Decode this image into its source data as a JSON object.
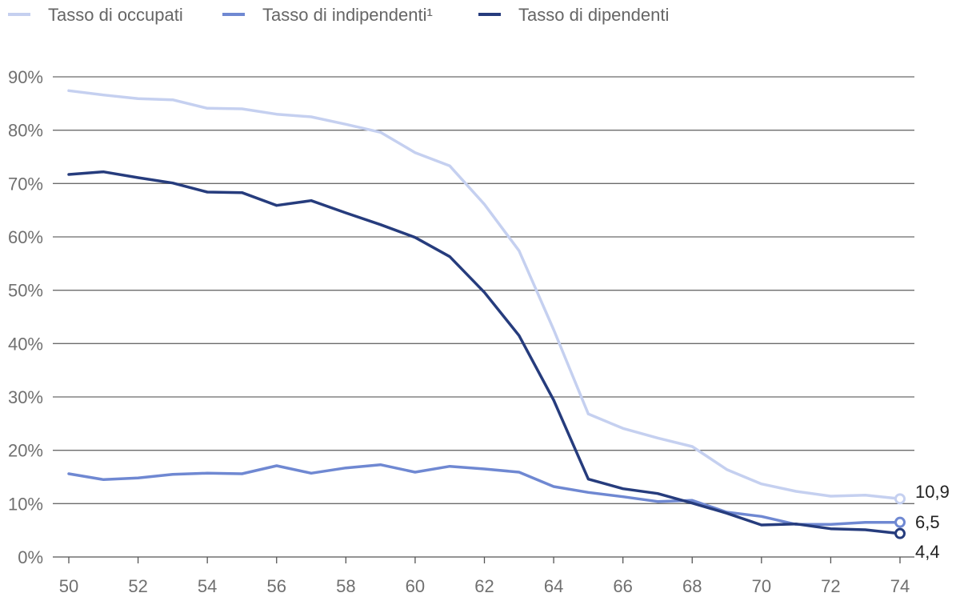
{
  "chart_data": {
    "type": "line",
    "title": "",
    "xlabel": "",
    "ylabel": "",
    "x": [
      50,
      51,
      52,
      53,
      54,
      55,
      56,
      57,
      58,
      59,
      60,
      61,
      62,
      63,
      64,
      65,
      66,
      67,
      68,
      69,
      70,
      71,
      72,
      73,
      74
    ],
    "x_ticks": [
      50,
      52,
      54,
      56,
      58,
      60,
      62,
      64,
      66,
      68,
      70,
      72,
      74
    ],
    "x_tick_labels": [
      "50",
      "52",
      "54",
      "56",
      "58",
      "60",
      "62",
      "64",
      "66",
      "68",
      "70",
      "72",
      "74"
    ],
    "xlim": [
      50,
      74
    ],
    "ylim": [
      0,
      90
    ],
    "y_ticks": [
      0,
      10,
      20,
      30,
      40,
      50,
      60,
      70,
      80,
      90
    ],
    "y_tick_labels": [
      "0%",
      "10%",
      "20%",
      "30%",
      "40%",
      "50%",
      "60%",
      "70%",
      "80%",
      "90%"
    ],
    "grid": "horizontal",
    "legend_position": "top-left",
    "series": [
      {
        "name": "Tasso di occupati",
        "color": "#c5d0f0",
        "values": [
          87.4,
          86.6,
          85.9,
          85.7,
          84.1,
          84.0,
          83.0,
          82.5,
          81.1,
          79.6,
          75.8,
          73.3,
          66.1,
          57.4,
          42.6,
          26.8,
          24.1,
          22.3,
          20.7,
          16.4,
          13.7,
          12.3,
          11.4,
          11.6,
          10.9
        ],
        "end_label": "10,9"
      },
      {
        "name": "Tasso di indipendenti¹",
        "color": "#6f88d2",
        "values": [
          15.6,
          14.5,
          14.8,
          15.5,
          15.7,
          15.6,
          17.1,
          15.7,
          16.7,
          17.3,
          15.9,
          17.0,
          16.5,
          15.9,
          13.2,
          12.1,
          11.3,
          10.4,
          10.6,
          8.4,
          7.6,
          6.1,
          6.1,
          6.5,
          6.5
        ],
        "end_label": "6,5"
      },
      {
        "name": "Tasso di dipendenti",
        "color": "#263c7d",
        "values": [
          71.7,
          72.2,
          71.1,
          70.1,
          68.4,
          68.3,
          65.9,
          66.8,
          64.5,
          62.3,
          59.9,
          56.3,
          49.6,
          41.5,
          29.4,
          14.6,
          12.8,
          11.9,
          10.1,
          8.2,
          6.0,
          6.2,
          5.3,
          5.1,
          4.4
        ],
        "end_label": "4,4"
      }
    ]
  }
}
